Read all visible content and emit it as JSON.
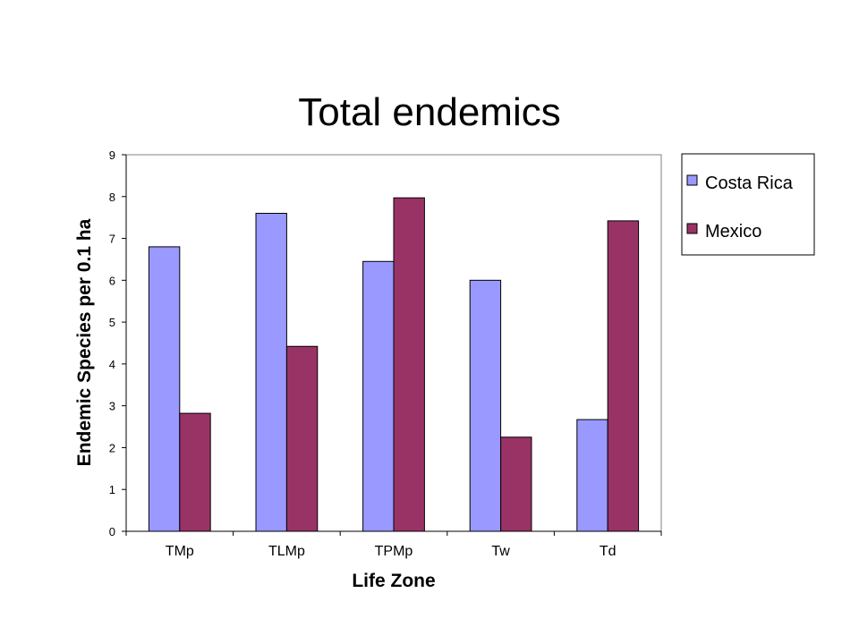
{
  "chart_data": {
    "type": "bar",
    "title": "Total endemics",
    "xlabel": "Life Zone",
    "ylabel": "Endemic Species per 0.1 ha",
    "categories": [
      "TMp",
      "TLMp",
      "TPMp",
      "Tw",
      "Td"
    ],
    "series": [
      {
        "name": "Costa Rica",
        "color": "#9999ff",
        "values": [
          6.8,
          7.6,
          6.45,
          6.0,
          2.67
        ]
      },
      {
        "name": "Mexico",
        "color": "#993366",
        "values": [
          2.82,
          4.42,
          7.97,
          2.25,
          7.42
        ]
      }
    ],
    "ylim": [
      0,
      9
    ],
    "yticks": [
      0,
      1,
      2,
      3,
      4,
      5,
      6,
      7,
      8,
      9
    ],
    "grid": false,
    "legend_position": "right"
  }
}
